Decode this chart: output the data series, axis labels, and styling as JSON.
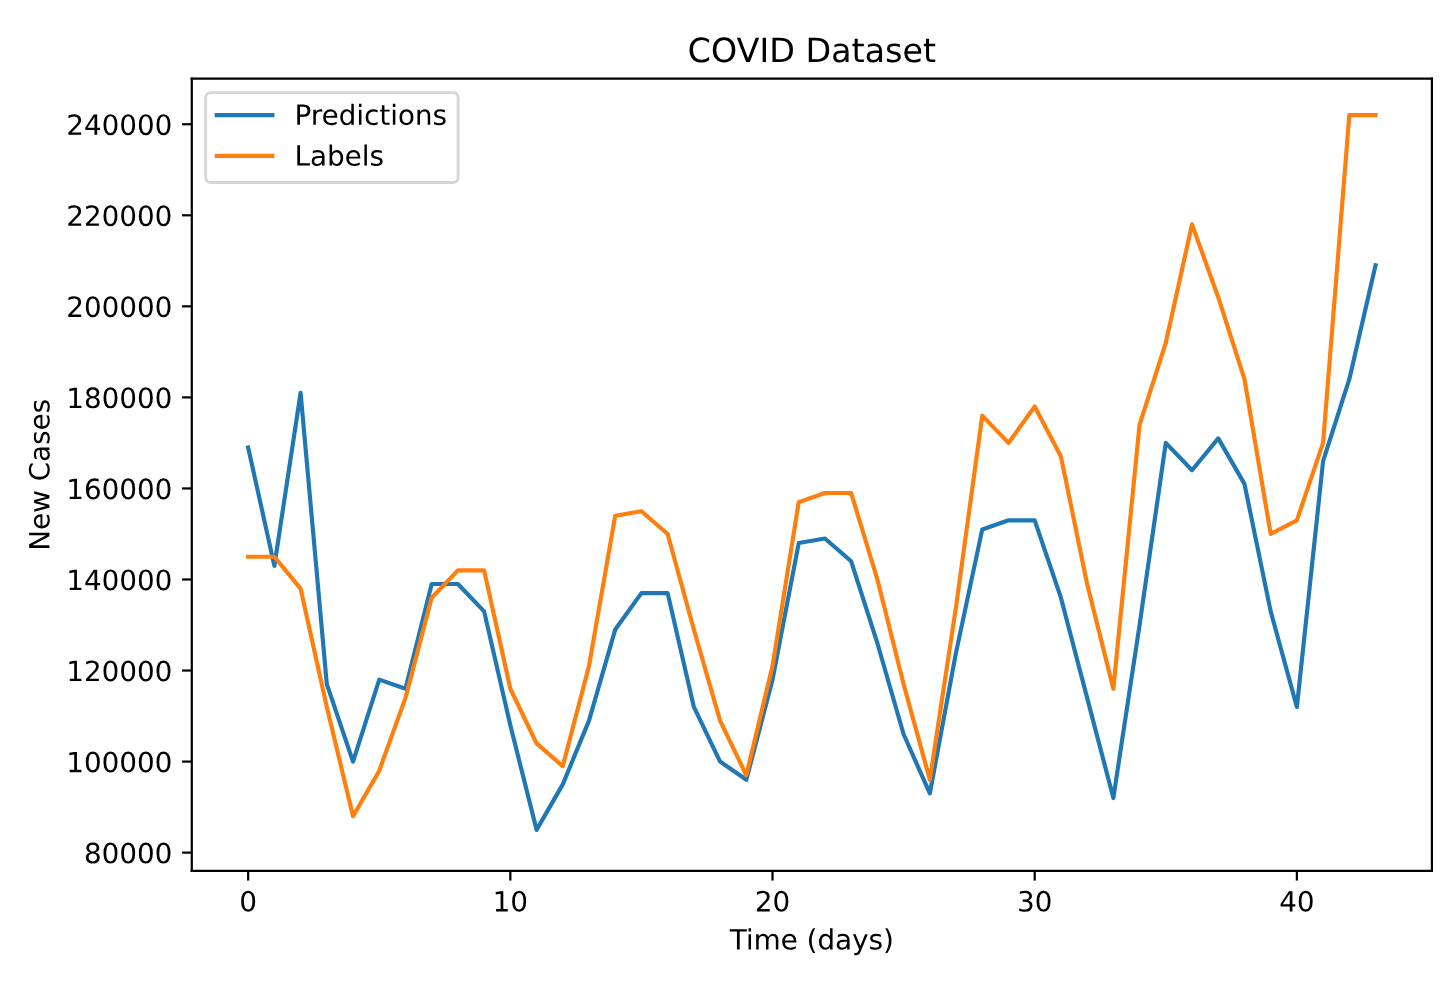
{
  "chart_data": {
    "type": "line",
    "title": "COVID Dataset",
    "xlabel": "Time (days)",
    "ylabel": "New Cases",
    "x": [
      0,
      1,
      2,
      3,
      4,
      5,
      6,
      7,
      8,
      9,
      10,
      11,
      12,
      13,
      14,
      15,
      16,
      17,
      18,
      19,
      20,
      21,
      22,
      23,
      24,
      25,
      26,
      27,
      28,
      29,
      30,
      31,
      32,
      33,
      34,
      35,
      36,
      37,
      38,
      39,
      40,
      41,
      42,
      43
    ],
    "series": [
      {
        "name": "Predictions",
        "color": "#1f77b4",
        "values": [
          169000,
          143000,
          181000,
          117000,
          100000,
          118000,
          116000,
          139000,
          139000,
          133000,
          108000,
          85000,
          95000,
          109000,
          129000,
          137000,
          137000,
          112000,
          100000,
          96000,
          118000,
          148000,
          149000,
          144000,
          126000,
          106000,
          93000,
          124000,
          151000,
          153000,
          153000,
          136000,
          114000,
          92000,
          130000,
          170000,
          164000,
          171000,
          161000,
          133000,
          112000,
          166000,
          184000,
          209000
        ]
      },
      {
        "name": "Labels",
        "color": "#ff7f0e",
        "values": [
          145000,
          145000,
          138000,
          112000,
          88000,
          98000,
          114000,
          136000,
          142000,
          142000,
          116000,
          104000,
          99000,
          121000,
          154000,
          155000,
          150000,
          129000,
          109000,
          97000,
          121000,
          157000,
          159000,
          159000,
          140000,
          117000,
          96000,
          134000,
          176000,
          170000,
          178000,
          167000,
          139000,
          116000,
          174000,
          192000,
          218000,
          202000,
          184000,
          150000,
          153000,
          170000,
          242000,
          242000
        ]
      }
    ],
    "xlim": [
      -2.15,
      45.15
    ],
    "ylim": [
      76000,
      250000
    ],
    "xticks": [
      0,
      10,
      20,
      30,
      40
    ],
    "yticks": [
      80000,
      100000,
      120000,
      140000,
      160000,
      180000,
      200000,
      220000,
      240000
    ],
    "grid": false,
    "legend": "top left",
    "marker": "none",
    "line_style": "solid"
  }
}
